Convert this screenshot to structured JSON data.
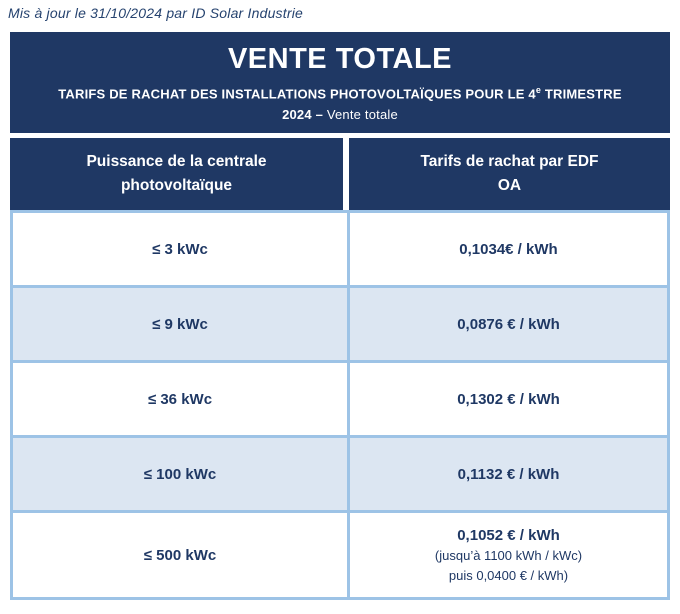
{
  "page": {
    "updated_note": "Mis à jour le 31/10/2024 par ID Solar Industrie"
  },
  "header": {
    "title": "VENTE TOTALE",
    "subtitle_bold_lead": "TARIFS DE RACHAT DES INSTALLATIONS PHOTOVOLTAÏQUES POUR LE 4",
    "subtitle_sup": "e",
    "subtitle_bold_tail": " TRIMESTRE 2024 – ",
    "subtitle_regular": "Vente totale"
  },
  "table": {
    "columns": [
      {
        "label": "Puissance de la centrale photovoltaïque"
      },
      {
        "label": "Tarifs de rachat par EDF OA"
      }
    ],
    "rows": [
      {
        "power": "≤ 3 kWc",
        "tariff": "0,1034€ / kWh"
      },
      {
        "power": "≤ 9 kWc",
        "tariff": "0,0876 € / kWh"
      },
      {
        "power": "≤ 36 kWc",
        "tariff": "0,1302 € / kWh"
      },
      {
        "power": "≤ 100 kWc",
        "tariff": "0,1132 € / kWh"
      },
      {
        "power": "≤ 500 kWc",
        "tariff": "0,1052 € / kWh",
        "tariff_note_1": "(jusqu’à 1100 kWh / kWc)",
        "tariff_note_2": "puis 0,0400 € / kWh)"
      }
    ]
  },
  "colors": {
    "navy": "#1F3864",
    "row_alt_blue": "#DCE6F2",
    "grid_blue": "#9DC3E6",
    "note_text_blue": "#26436F"
  }
}
